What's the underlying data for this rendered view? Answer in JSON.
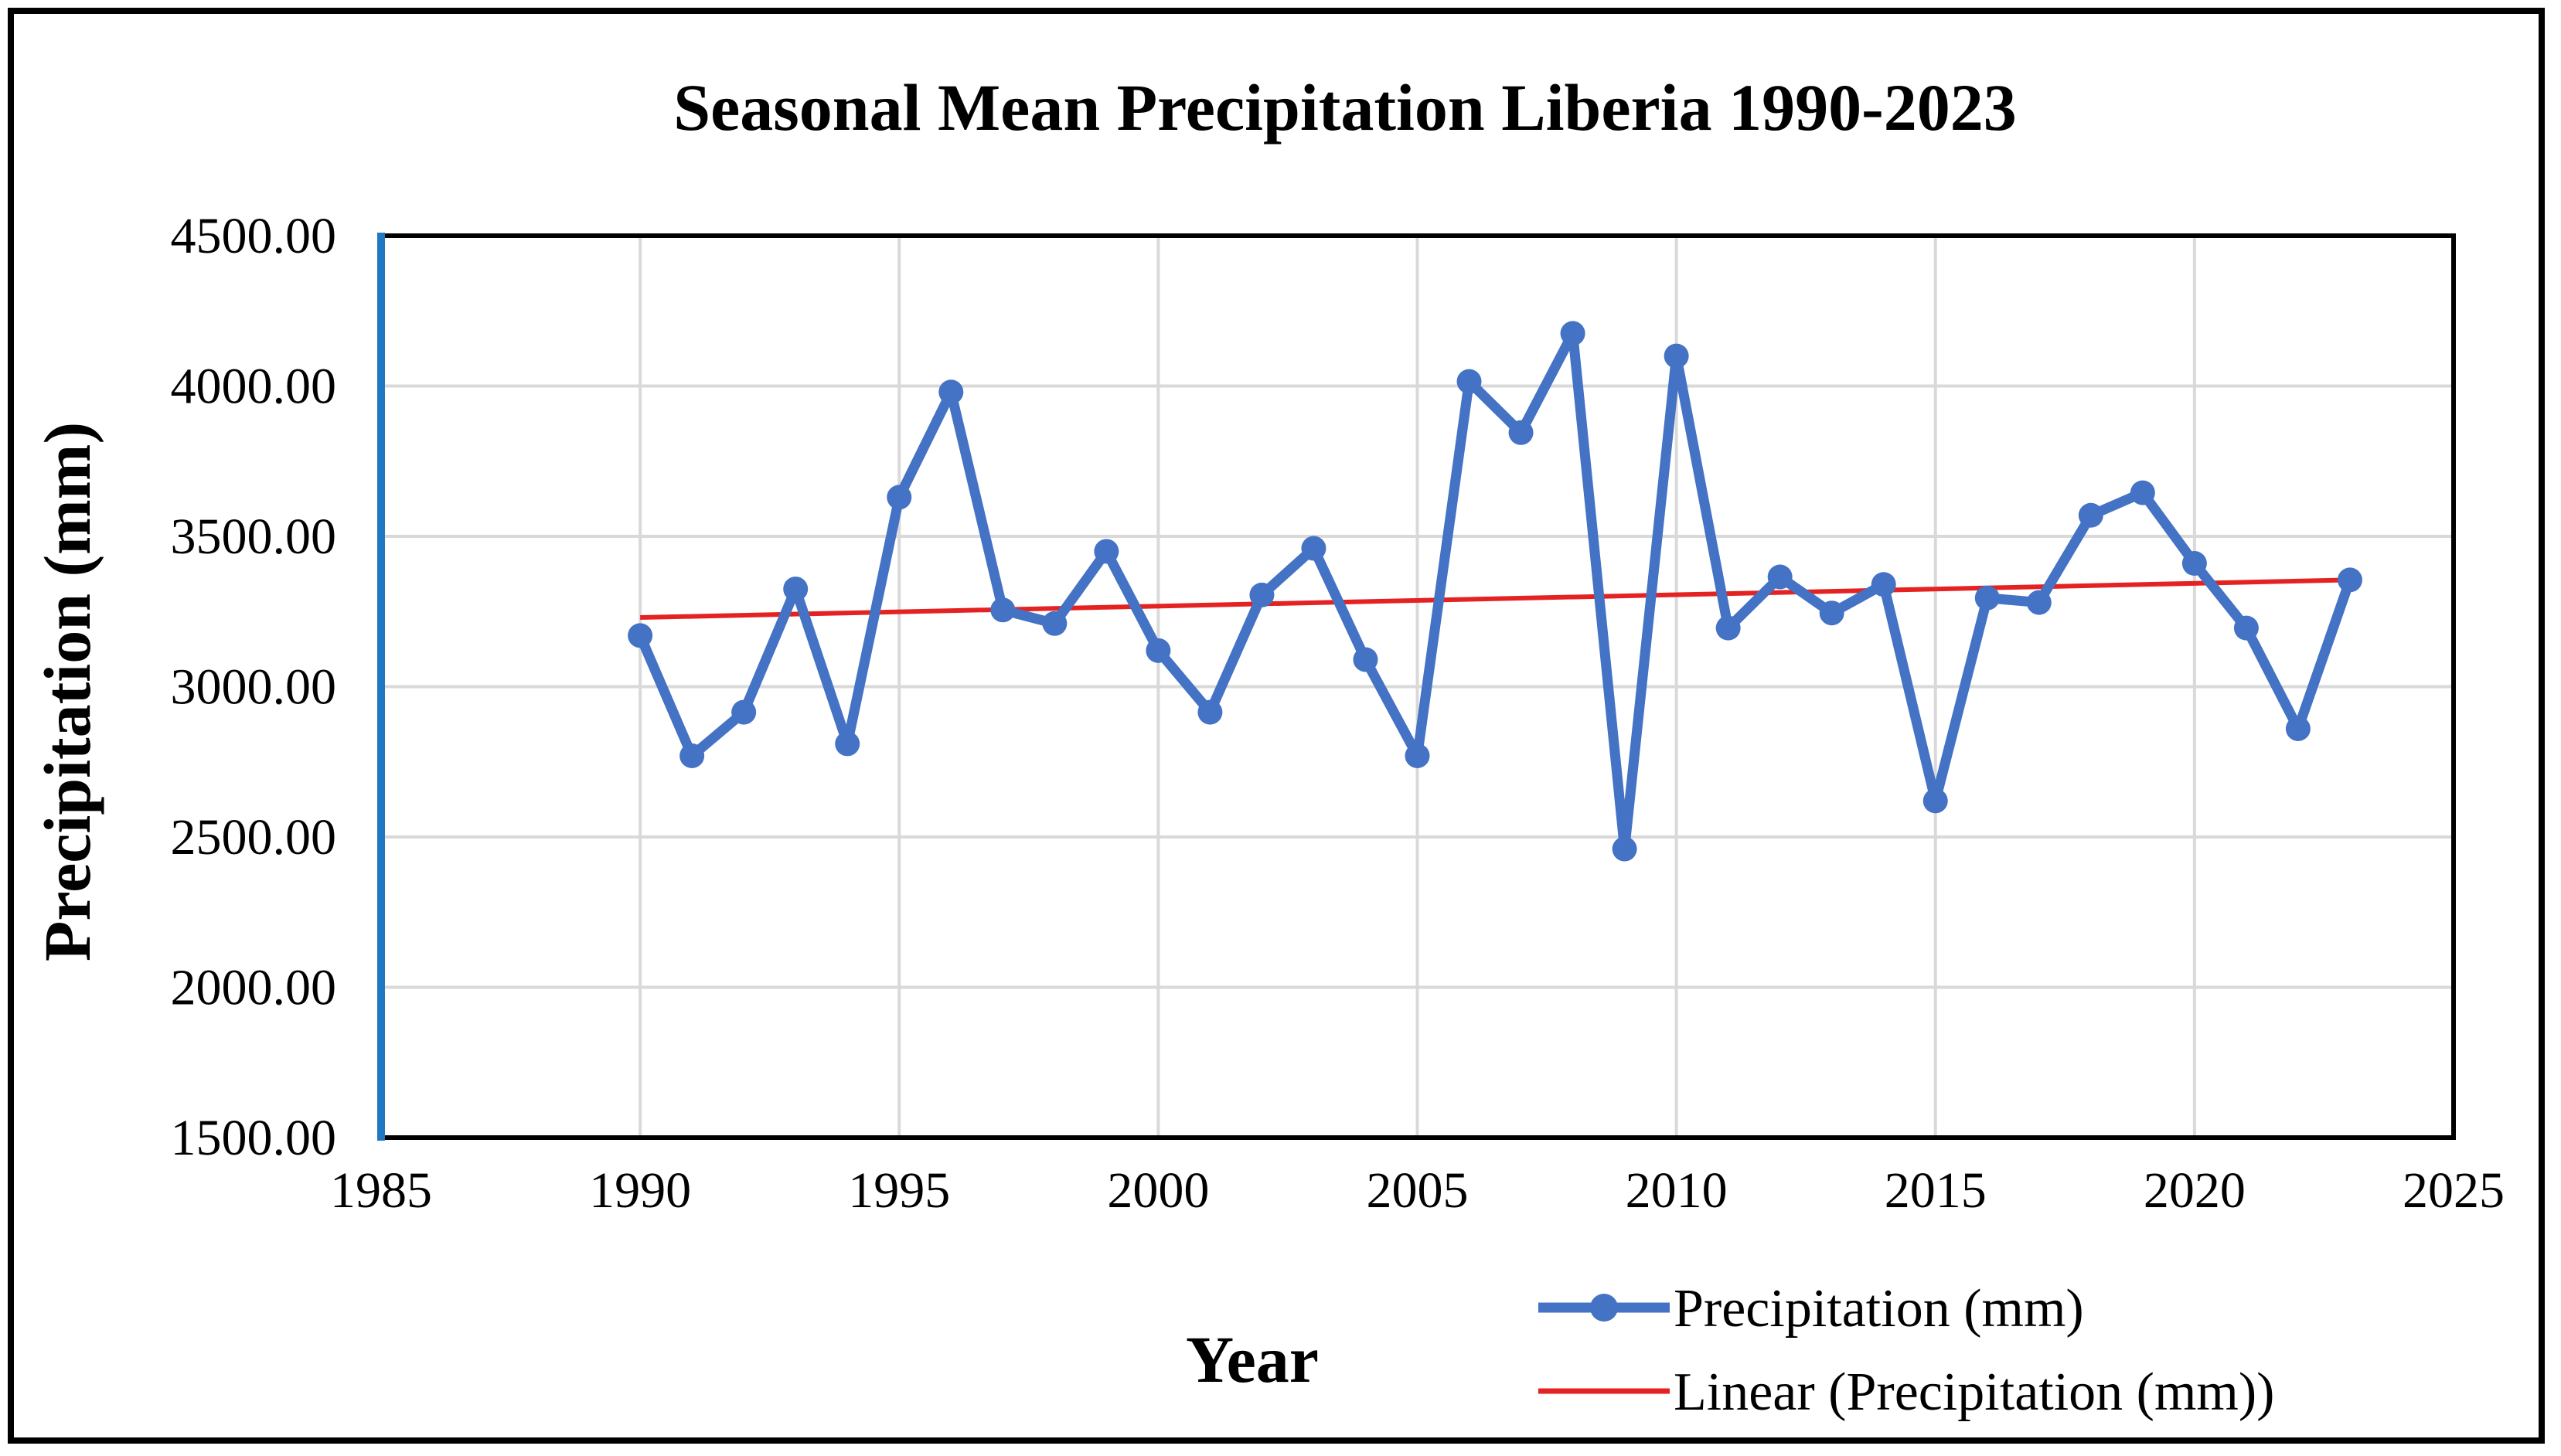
{
  "chart_data": {
    "type": "line",
    "title": "Seasonal Mean Precipitation  Liberia 1990-2023",
    "xlabel": "Year",
    "ylabel": "Precipitation  (mm)",
    "xlim": [
      1985,
      2025
    ],
    "ylim": [
      1500,
      4500
    ],
    "xticks": [
      1985,
      1990,
      1995,
      2000,
      2005,
      2010,
      2015,
      2020,
      2025
    ],
    "yticks": [
      1500,
      2000,
      2500,
      3000,
      3500,
      4000,
      4500
    ],
    "ytick_labels": [
      "1500.00",
      "2000.00",
      "2500.00",
      "3000.00",
      "3500.00",
      "4000.00",
      "4500.00"
    ],
    "grid": true,
    "legend_position": "bottom-right",
    "x": [
      1990,
      1991,
      1992,
      1993,
      1994,
      1995,
      1996,
      1997,
      1998,
      1999,
      2000,
      2001,
      2002,
      2003,
      2004,
      2005,
      2006,
      2007,
      2008,
      2009,
      2010,
      2011,
      2012,
      2013,
      2014,
      2015,
      2016,
      2017,
      2018,
      2019,
      2020,
      2021,
      2022,
      2023
    ],
    "series": [
      {
        "name": "Precipitation (mm)",
        "color": "#4472C4",
        "values": [
          3170,
          2770,
          2915,
          3325,
          2810,
          3630,
          3980,
          3255,
          3210,
          3450,
          3120,
          2915,
          3305,
          3460,
          3090,
          2770,
          4015,
          3845,
          4175,
          2460,
          4100,
          3195,
          3365,
          3245,
          3340,
          2620,
          3295,
          3280,
          3570,
          3645,
          3410,
          3195,
          2860,
          3355
        ]
      }
    ],
    "trendline": {
      "name": "Linear (Precipitation (mm))",
      "color": "#E52222",
      "x": [
        1990,
        2023
      ],
      "y": [
        3230,
        3355
      ]
    }
  }
}
